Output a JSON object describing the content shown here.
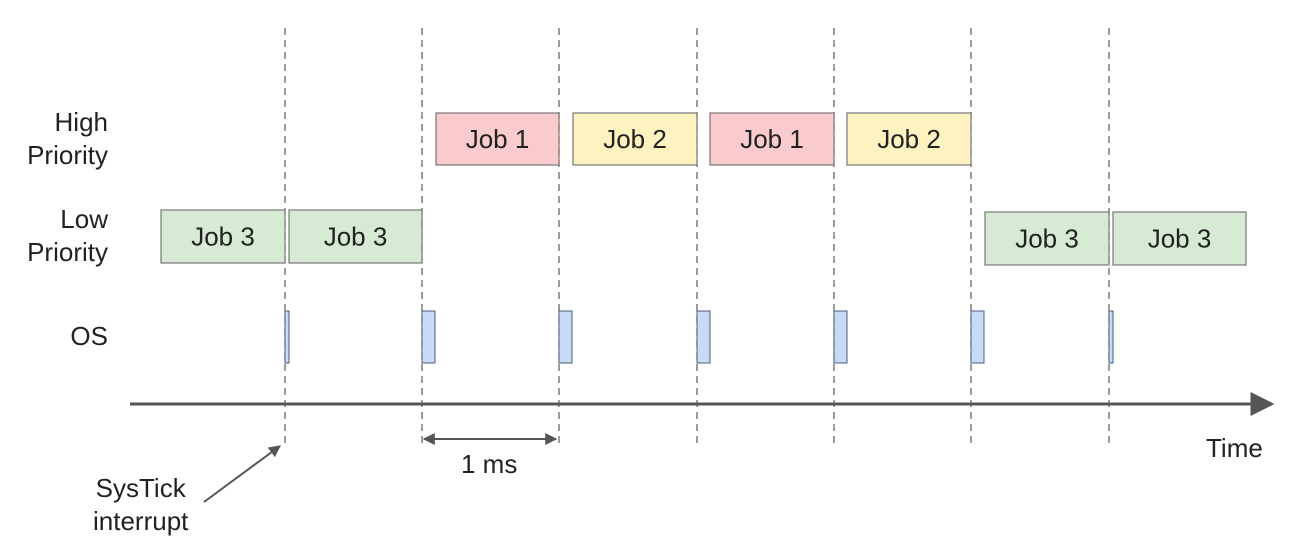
{
  "rows": {
    "high": "High\nPriority",
    "low": "Low\nPriority",
    "os": "OS"
  },
  "colors": {
    "job1": "#f9cbcc",
    "job2": "#fdf2c0",
    "job3": "#d7ead3",
    "os": "#c7dbf7",
    "os_border": "#4a5d7a",
    "box_border": "#777777",
    "guide": "#666666",
    "axis": "#555555"
  },
  "high_jobs": [
    "Job 1",
    "Job 2",
    "Job 1",
    "Job 2"
  ],
  "low_jobs": [
    "Job 3",
    "Job 3",
    "Job 3",
    "Job 3"
  ],
  "time_label": "Time",
  "interval_label": "1 ms",
  "systick_label": "SysTick\ninterrupt"
}
